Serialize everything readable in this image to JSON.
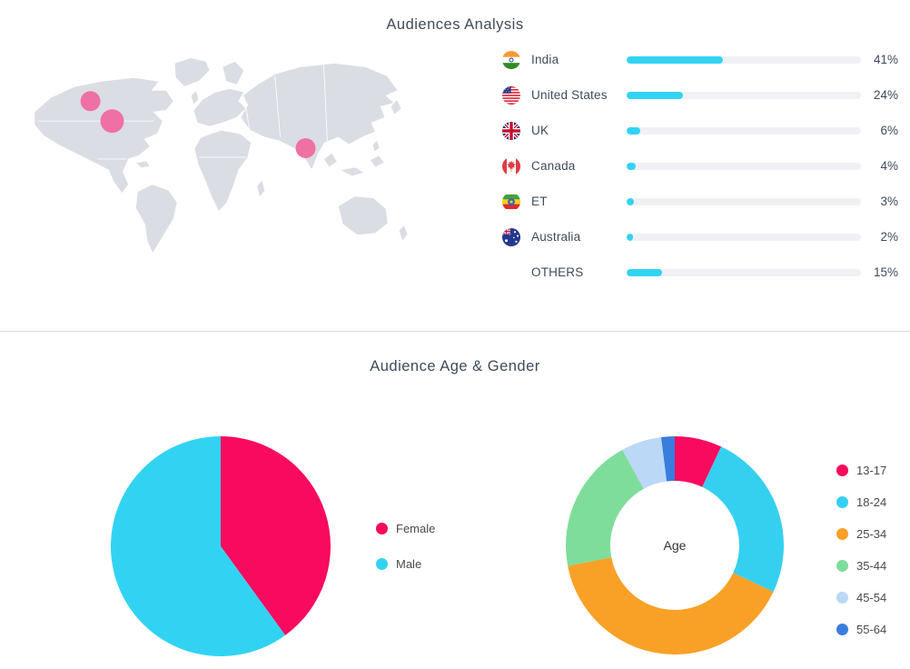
{
  "audiences": {
    "title": "Audiences Analysis",
    "bar_color": "#32D3F2",
    "track_color": "#F0F1F4",
    "map": {
      "land_color": "#DADDE3",
      "marker_color": "#F0699E",
      "markers": [
        {
          "x": 92,
          "y": 56,
          "r": 11
        },
        {
          "x": 116,
          "y": 78,
          "r": 13
        },
        {
          "x": 330,
          "y": 108,
          "r": 11
        }
      ]
    },
    "countries": [
      {
        "flag": "india-flag",
        "name": "India",
        "percent": 41,
        "label": "41%"
      },
      {
        "flag": "united-states-flag",
        "name": "United States",
        "percent": 24,
        "label": "24%"
      },
      {
        "flag": "uk-flag",
        "name": "UK",
        "percent": 6,
        "label": "6%"
      },
      {
        "flag": "canada-flag",
        "name": "Canada",
        "percent": 4,
        "label": "4%"
      },
      {
        "flag": "ethiopia-flag",
        "name": "ET",
        "percent": 3,
        "label": "3%"
      },
      {
        "flag": "australia-flag",
        "name": "Australia",
        "percent": 2,
        "label": "2%"
      },
      {
        "flag": null,
        "name": "OTHERS",
        "percent": 15,
        "label": "15%"
      }
    ]
  },
  "age_gender": {
    "title": "Audience Age & Gender",
    "age_chart": {
      "center_label": "Age"
    }
  },
  "chart_data": [
    {
      "type": "bar",
      "title": "Audiences Analysis",
      "orientation": "horizontal",
      "categories": [
        "India",
        "United States",
        "UK",
        "Canada",
        "ET",
        "Australia",
        "OTHERS"
      ],
      "values": [
        41,
        24,
        6,
        4,
        3,
        2,
        15
      ],
      "unit": "%",
      "xlim": [
        0,
        100
      ],
      "bar_color": "#32D3F2"
    },
    {
      "type": "pie",
      "title": "Gender",
      "legend_position": "right",
      "start_angle_deg": 0,
      "direction": "clockwise",
      "series": [
        {
          "name": "Female",
          "value": 40
        },
        {
          "name": "Male",
          "value": 60
        }
      ],
      "colors": [
        "#F80A5F",
        "#32D3F2"
      ]
    },
    {
      "type": "donut",
      "title": "Age",
      "center_label": "Age",
      "legend_position": "right",
      "start_angle_deg": 0,
      "direction": "clockwise",
      "series": [
        {
          "name": "13-17",
          "value": 7
        },
        {
          "name": "18-24",
          "value": 25
        },
        {
          "name": "25-34",
          "value": 40
        },
        {
          "name": "35-44",
          "value": 20
        },
        {
          "name": "45-54",
          "value": 6
        },
        {
          "name": "55-64",
          "value": 2
        }
      ],
      "colors": [
        "#F80A5F",
        "#35D0F0",
        "#F9A126",
        "#7FDD9B",
        "#BBD8F7",
        "#3B7DDD"
      ]
    }
  ]
}
